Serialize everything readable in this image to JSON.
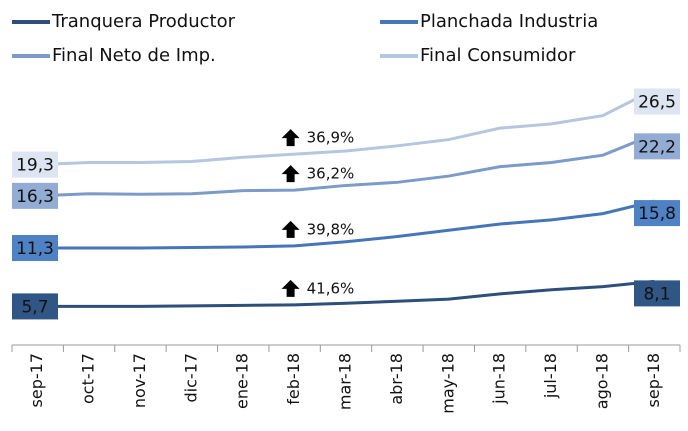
{
  "chart_data": {
    "type": "line",
    "categories": [
      "sep-17",
      "oct-17",
      "nov-17",
      "dic-17",
      "ene-18",
      "feb-18",
      "mar-18",
      "abr-18",
      "may-18",
      "jun-18",
      "jul-18",
      "ago-18",
      "sep-18"
    ],
    "series": [
      {
        "name": "Tranquera Productor",
        "color": "#2c4f7c",
        "label_color": "#2f5684",
        "values": [
          5.7,
          5.7,
          5.7,
          5.75,
          5.8,
          5.85,
          6.0,
          6.2,
          6.4,
          6.9,
          7.3,
          7.6,
          8.1
        ],
        "value_labels": [
          "5,7",
          null,
          null,
          null,
          null,
          null,
          null,
          null,
          null,
          null,
          null,
          null,
          "8,1"
        ]
      },
      {
        "name": "Planchada Industria",
        "color": "#4577b8",
        "label_color": "#4f82c4",
        "values": [
          11.3,
          11.3,
          11.3,
          11.35,
          11.4,
          11.5,
          11.9,
          12.4,
          13.0,
          13.6,
          14.0,
          14.6,
          15.8
        ],
        "value_labels": [
          "11,3",
          null,
          null,
          null,
          null,
          null,
          null,
          null,
          null,
          null,
          null,
          null,
          "15,8"
        ]
      },
      {
        "name": "Final Neto de Imp.",
        "color": "#7b9bc8",
        "label_color": "#93acd4",
        "values": [
          16.3,
          16.5,
          16.45,
          16.5,
          16.8,
          16.85,
          17.3,
          17.6,
          18.2,
          19.1,
          19.5,
          20.2,
          22.2
        ],
        "value_labels": [
          "16,3",
          null,
          null,
          null,
          null,
          null,
          null,
          null,
          null,
          null,
          null,
          null,
          "22,2"
        ]
      },
      {
        "name": "Final Consumidor",
        "color": "#b5c6df",
        "label_color": "#dce5f1",
        "values": [
          19.3,
          19.5,
          19.5,
          19.6,
          20.0,
          20.3,
          20.6,
          21.1,
          21.7,
          22.8,
          23.2,
          24.0,
          26.5
        ],
        "value_labels": [
          "19,3",
          null,
          null,
          null,
          null,
          null,
          null,
          null,
          null,
          null,
          null,
          null,
          "26,5"
        ]
      }
    ],
    "annotations": [
      "41,6%",
      "39,8%",
      "36,2%",
      "36,9%"
    ],
    "ylim": [
      2,
      30
    ]
  }
}
